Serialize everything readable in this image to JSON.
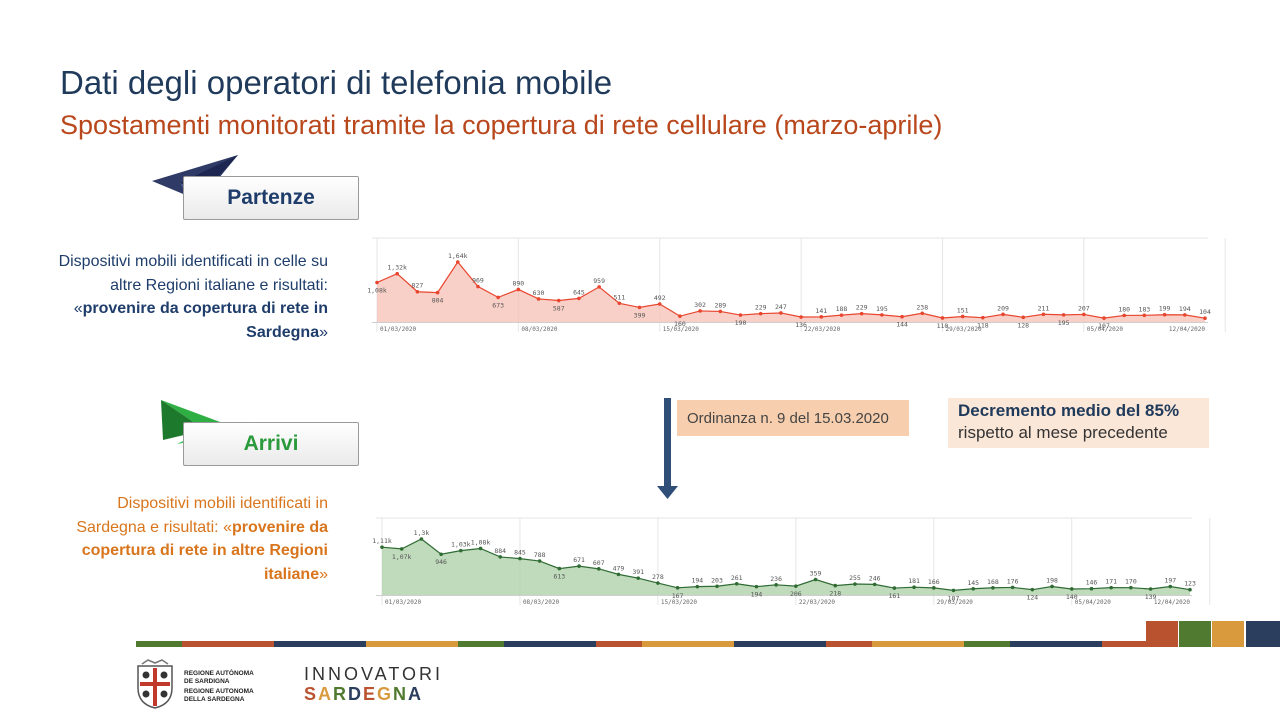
{
  "header": {
    "title": "Dati degli operatori di telefonia mobile",
    "subtitle": "Spostamenti monitorati tramite la copertura di rete cellulare (marzo-aprile)"
  },
  "departures": {
    "label": "Partenze",
    "desc_pre": "Dispositivi mobili identificati in celle su altre Regioni italiane e risultati: «",
    "desc_bold": "provenire da copertura di rete in Sardegna",
    "desc_post": "»"
  },
  "arrivals": {
    "label": "Arrivi",
    "desc_pre": "Dispositivi mobili identificati in Sardegna e risultati: «",
    "desc_bold": "provenire da copertura di rete in altre Regioni italiane",
    "desc_post": "»"
  },
  "annotations": {
    "ordinance": "Ordinanza n. 9 del 15.03.2020",
    "decrease_bold": "Decremento medio del 85%",
    "decrease_rest": "rispetto al mese precedente"
  },
  "footer": {
    "region_line1": "REGIONE AUTÒNOMA DE SARDIGNA",
    "region_line2": "REGIONE AUTONOMA DELLA SARDEGNA",
    "innov_top": "INNOVATORI",
    "innov_bottom": "SARDEGNA"
  },
  "colors": {
    "title": "#1f3a5a",
    "subtitle": "#b9471c",
    "dep_line": "#e8452e",
    "dep_fill": "#f7c0b4",
    "arr_line": "#2f6b33",
    "arr_fill": "#a9cfa6",
    "ordinance_box": "#f7cfae",
    "decrease_box": "#fbe7d8"
  },
  "icons": {
    "departures": "paper-plane-icon",
    "arrivals": "paper-plane-icon",
    "arrow": "arrow-down-icon",
    "logo": "coat-of-arms-icon"
  },
  "chart_data": [
    {
      "type": "area",
      "name": "Partenze",
      "x_ticks": [
        "01/03/2020",
        "08/03/2020",
        "15/03/2020",
        "22/03/2020",
        "29/03/2020",
        "05/04/2020",
        "12/04/2020"
      ],
      "values": [
        1080,
        1320,
        827,
        804,
        1640,
        969,
        673,
        890,
        630,
        587,
        645,
        959,
        511,
        399,
        492,
        160,
        302,
        289,
        190,
        229,
        247,
        136,
        141,
        188,
        229,
        195,
        144,
        238,
        110,
        151,
        118,
        209,
        128,
        211,
        195,
        207,
        107,
        180,
        183,
        199,
        194,
        104
      ],
      "labels": [
        "1,08k",
        "1,32k",
        "827",
        "804",
        "1,64k",
        "969",
        "673",
        "890",
        "630",
        "587",
        "645",
        "959",
        "511",
        "399",
        "492",
        "160",
        "302",
        "289",
        "190",
        "229",
        "247",
        "136",
        "141",
        "188",
        "229",
        "195",
        "144",
        "238",
        "110",
        "151",
        "118",
        "209",
        "128",
        "211",
        "195",
        "207",
        "107",
        "180",
        "183",
        "199",
        "194",
        "104"
      ]
    },
    {
      "type": "area",
      "name": "Arrivi",
      "x_ticks": [
        "01/03/2020",
        "08/03/2020",
        "15/03/2020",
        "22/03/2020",
        "29/03/2020",
        "05/04/2020",
        "12/04/2020"
      ],
      "values": [
        1110,
        1070,
        1300,
        946,
        1030,
        1080,
        884,
        845,
        788,
        613,
        671,
        607,
        479,
        391,
        278,
        167,
        194,
        203,
        261,
        194,
        236,
        206,
        359,
        218,
        255,
        246,
        161,
        181,
        166,
        107,
        145,
        168,
        176,
        124,
        198,
        140,
        146,
        171,
        170,
        139,
        197,
        123
      ],
      "labels": [
        "1,11k",
        "1,07k",
        "1,3k",
        "946",
        "1,03k",
        "1,08k",
        "884",
        "845",
        "788",
        "613",
        "671",
        "607",
        "479",
        "391",
        "278",
        "167",
        "194",
        "203",
        "261",
        "194",
        "236",
        "206",
        "359",
        "218",
        "255",
        "246",
        "161",
        "181",
        "166",
        "107",
        "145",
        "168",
        "176",
        "124",
        "198",
        "140",
        "146",
        "171",
        "170",
        "139",
        "197",
        "123"
      ]
    }
  ]
}
